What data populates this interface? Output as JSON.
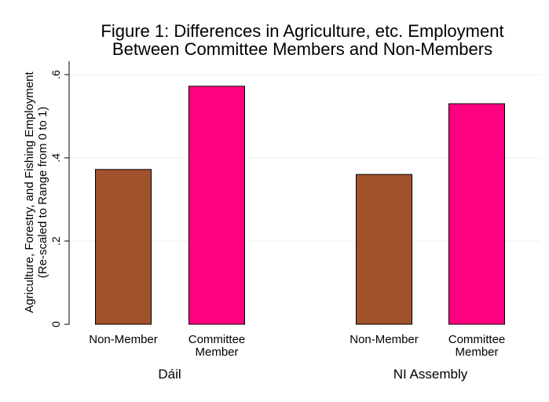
{
  "chart_data": {
    "type": "bar",
    "title": [
      "Figure 1: Differences in Agriculture, etc. Employment",
      "Between Committee Members and Non-Members"
    ],
    "ylabel": [
      "Agriculture, Forestry, and Fishing Employment",
      "(Re-scaled to Range from 0 to 1)"
    ],
    "ylim": [
      0,
      0.63
    ],
    "yticks": [
      {
        "value": 0,
        "label": "0"
      },
      {
        "value": 0.2,
        "label": ".2"
      },
      {
        "value": 0.4,
        "label": ".4"
      },
      {
        "value": 0.6,
        "label": ".6"
      }
    ],
    "grid": true,
    "groups": [
      {
        "name": "Dáil",
        "bars": [
          {
            "category": [
              "Non-Member"
            ],
            "value": 0.372,
            "color": "#a0522d"
          },
          {
            "category": [
              "Committee",
              "Member"
            ],
            "value": 0.572,
            "color": "#ff0080"
          }
        ]
      },
      {
        "name": "NI Assembly",
        "bars": [
          {
            "category": [
              "Non-Member"
            ],
            "value": 0.36,
            "color": "#a0522d"
          },
          {
            "category": [
              "Committee",
              "Member"
            ],
            "value": 0.53,
            "color": "#ff0080"
          }
        ]
      }
    ]
  }
}
